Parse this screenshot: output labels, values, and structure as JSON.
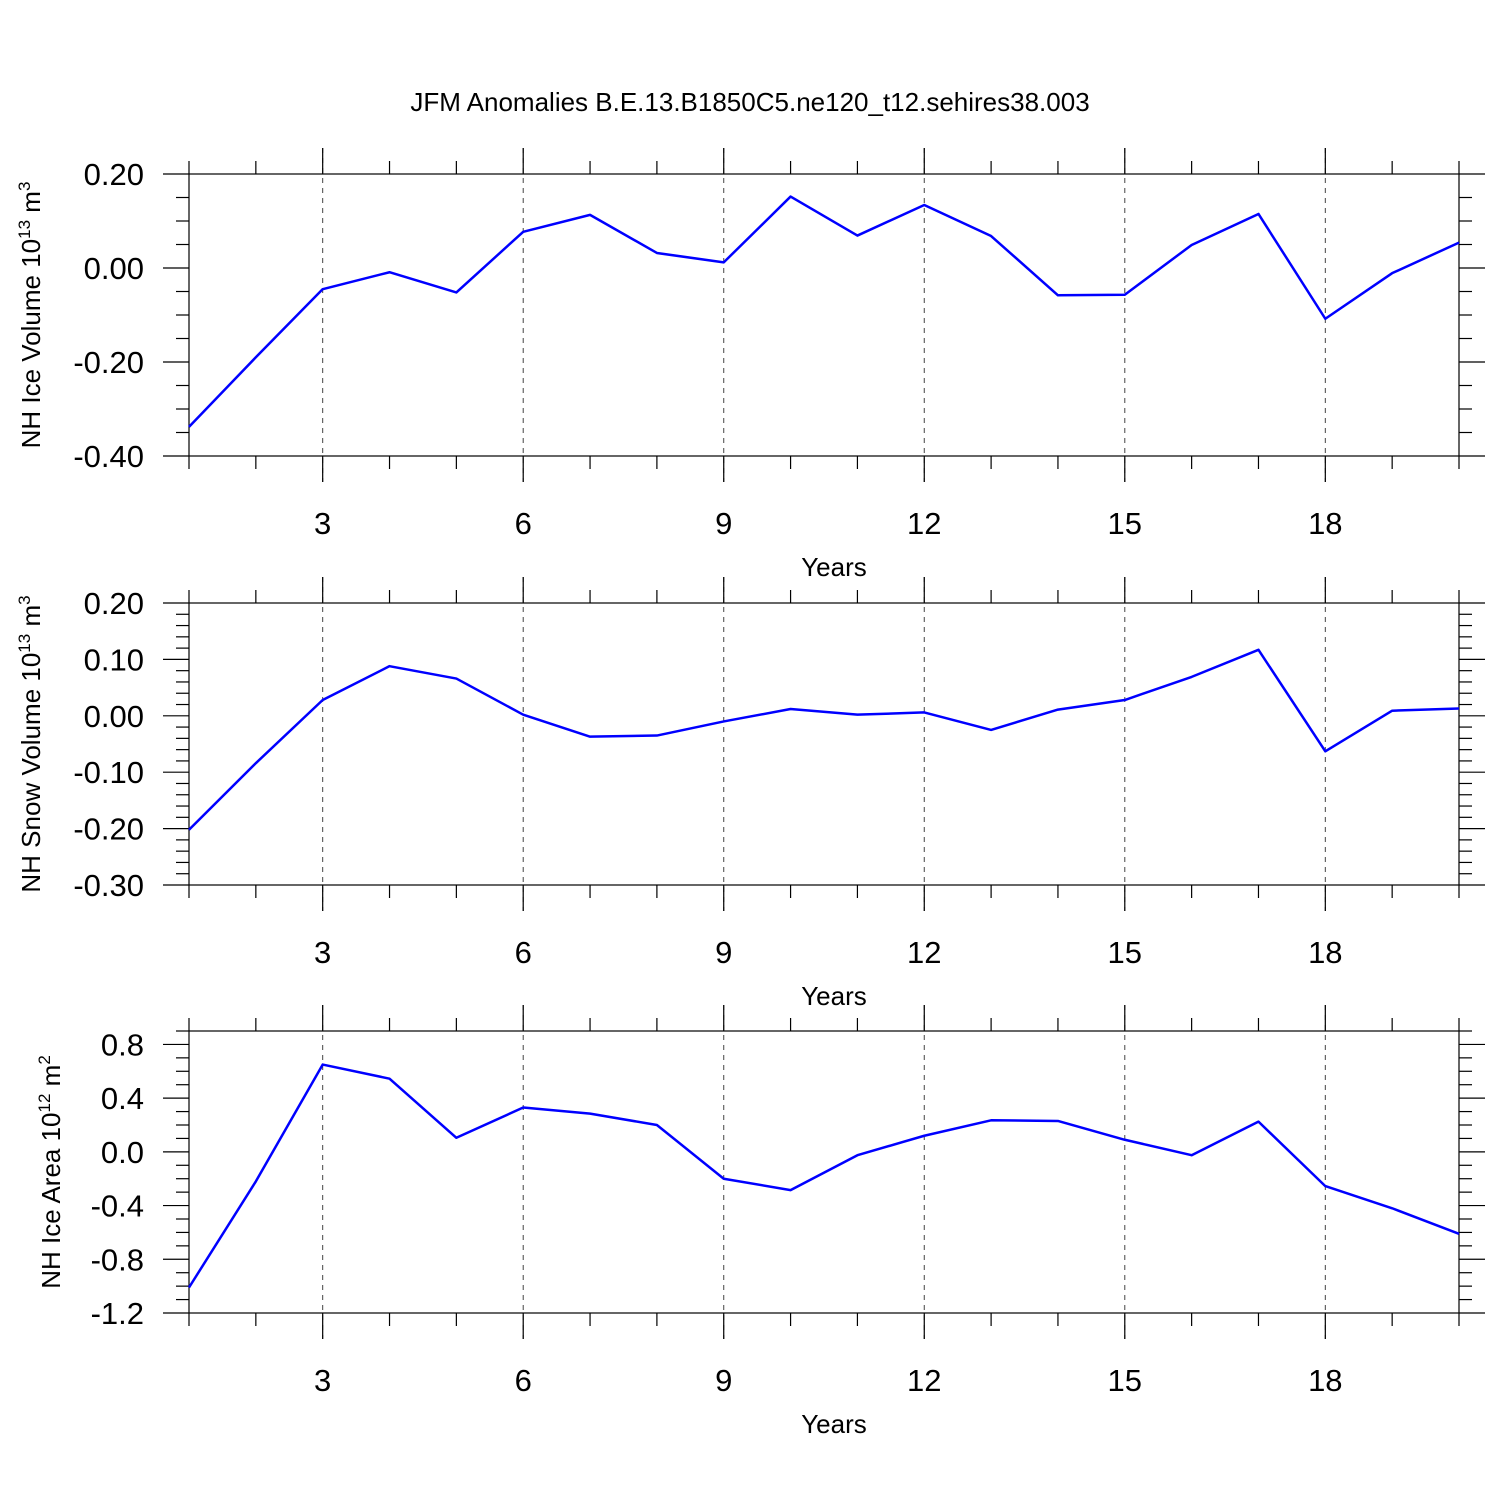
{
  "title": "JFM Anomalies B.E.13.B1850C5.ne120_t12.sehires38.003",
  "line_color": "#0000ff",
  "chart_data": [
    {
      "type": "line",
      "ylabel": "NH Ice Volume 10",
      "ylabel_exp": "13",
      "ylabel_unit": " m",
      "ylabel_unit_exp": "3",
      "xlabel": "Years",
      "xlim": [
        1,
        20
      ],
      "ylim": [
        -0.4,
        0.2
      ],
      "x_ticks": [
        3,
        6,
        9,
        12,
        15,
        18
      ],
      "x_tick_labels": [
        "3",
        "6",
        "9",
        "12",
        "15",
        "18"
      ],
      "y_ticks": [
        -0.4,
        -0.2,
        0.0,
        0.2
      ],
      "y_tick_labels": [
        "-0.40",
        "-0.20",
        "0.00",
        "0.20"
      ],
      "y_minor_step": 0.05,
      "x": [
        1,
        2,
        3,
        4,
        5,
        6,
        7,
        8,
        9,
        10,
        11,
        12,
        13,
        14,
        15,
        16,
        17,
        18,
        19,
        20
      ],
      "series": [
        {
          "name": "NH Ice Volume",
          "values": [
            -0.338,
            -0.19,
            -0.045,
            -0.009,
            -0.052,
            0.077,
            0.113,
            0.032,
            0.012,
            0.152,
            0.069,
            0.134,
            0.068,
            -0.058,
            -0.057,
            0.049,
            0.115,
            -0.108,
            -0.011,
            0.054
          ]
        }
      ]
    },
    {
      "type": "line",
      "ylabel": "NH Snow Volume 10",
      "ylabel_exp": "13",
      "ylabel_unit": " m",
      "ylabel_unit_exp": "3",
      "xlabel": "Years",
      "xlim": [
        1,
        20
      ],
      "ylim": [
        -0.3,
        0.2
      ],
      "x_ticks": [
        3,
        6,
        9,
        12,
        15,
        18
      ],
      "x_tick_labels": [
        "3",
        "6",
        "9",
        "12",
        "15",
        "18"
      ],
      "y_ticks": [
        -0.3,
        -0.2,
        -0.1,
        0.0,
        0.1,
        0.2
      ],
      "y_tick_labels": [
        "-0.30",
        "-0.20",
        "-0.10",
        "0.00",
        "0.10",
        "0.20"
      ],
      "y_minor_step": 0.02,
      "x": [
        1,
        2,
        3,
        4,
        5,
        6,
        7,
        8,
        9,
        10,
        11,
        12,
        13,
        14,
        15,
        16,
        17,
        18,
        19,
        20
      ],
      "series": [
        {
          "name": "NH Snow Volume",
          "values": [
            -0.202,
            -0.084,
            0.028,
            0.088,
            0.066,
            0.002,
            -0.037,
            -0.035,
            -0.01,
            0.012,
            0.002,
            0.006,
            -0.025,
            0.011,
            0.028,
            0.069,
            0.117,
            -0.063,
            0.009,
            0.013
          ]
        }
      ]
    },
    {
      "type": "line",
      "ylabel": "NH Ice Area 10",
      "ylabel_exp": "12",
      "ylabel_unit": " m",
      "ylabel_unit_exp": "2",
      "xlabel": "Years",
      "xlim": [
        1,
        20
      ],
      "ylim": [
        -1.2,
        0.9
      ],
      "x_ticks": [
        3,
        6,
        9,
        12,
        15,
        18
      ],
      "x_tick_labels": [
        "3",
        "6",
        "9",
        "12",
        "15",
        "18"
      ],
      "y_ticks": [
        -1.2,
        -0.8,
        -0.4,
        0.0,
        0.4,
        0.8
      ],
      "y_tick_labels": [
        "-1.2",
        "-0.8",
        "-0.4",
        "0.0",
        "0.4",
        "0.8"
      ],
      "y_minor_step": 0.1,
      "x": [
        1,
        2,
        3,
        4,
        5,
        6,
        7,
        8,
        9,
        10,
        11,
        12,
        13,
        14,
        15,
        16,
        17,
        18,
        19,
        20
      ],
      "series": [
        {
          "name": "NH Ice Area",
          "values": [
            -1.01,
            -0.22,
            0.65,
            0.545,
            0.105,
            0.33,
            0.285,
            0.2,
            -0.2,
            -0.285,
            -0.025,
            0.12,
            0.235,
            0.23,
            0.09,
            -0.025,
            0.225,
            -0.255,
            -0.42,
            -0.61
          ]
        }
      ]
    }
  ]
}
